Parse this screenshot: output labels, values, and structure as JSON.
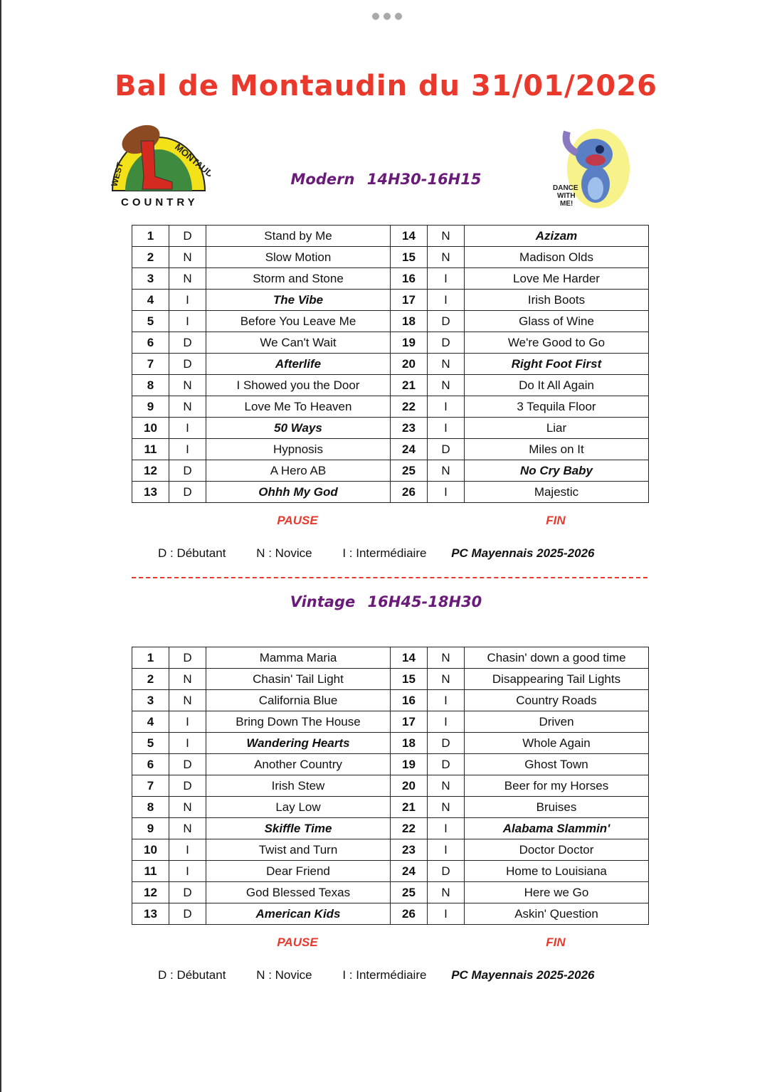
{
  "title": "Bal de Montaudin du 31/01/2026",
  "logos": {
    "left": "WEST MONTAUDIN COUNTRY",
    "right": "DANCE WITH ME!"
  },
  "sessions": [
    {
      "heading": "Modern   14H30-16H15",
      "pause_label": "PAUSE",
      "end_label": "FIN",
      "rows": [
        [
          {
            "num": "1",
            "level": "D",
            "title": "Stand by Me"
          },
          {
            "num": "14",
            "level": "N",
            "title": "Azizam",
            "emph": true
          }
        ],
        [
          {
            "num": "2",
            "level": "N",
            "title": "Slow Motion"
          },
          {
            "num": "15",
            "level": "N",
            "title": "Madison Olds"
          }
        ],
        [
          {
            "num": "3",
            "level": "N",
            "title": "Storm and Stone"
          },
          {
            "num": "16",
            "level": "I",
            "title": "Love Me Harder"
          }
        ],
        [
          {
            "num": "4",
            "level": "I",
            "title": "The Vibe",
            "emph": true
          },
          {
            "num": "17",
            "level": "I",
            "title": "Irish Boots"
          }
        ],
        [
          {
            "num": "5",
            "level": "I",
            "title": "Before You Leave Me"
          },
          {
            "num": "18",
            "level": "D",
            "title": "Glass of Wine"
          }
        ],
        [
          {
            "num": "6",
            "level": "D",
            "title": "We Can't Wait"
          },
          {
            "num": "19",
            "level": "D",
            "title": "We're Good to Go"
          }
        ],
        [
          {
            "num": "7",
            "level": "D",
            "title": "Afterlife",
            "emph": true
          },
          {
            "num": "20",
            "level": "N",
            "title": "Right Foot First",
            "emph": true
          }
        ],
        [
          {
            "num": "8",
            "level": "N",
            "title": "I Showed you the Door"
          },
          {
            "num": "21",
            "level": "N",
            "title": "Do It All Again"
          }
        ],
        [
          {
            "num": "9",
            "level": "N",
            "title": "Love Me To Heaven"
          },
          {
            "num": "22",
            "level": "I",
            "title": "3 Tequila Floor"
          }
        ],
        [
          {
            "num": "10",
            "level": "I",
            "title": "50 Ways",
            "emph": true
          },
          {
            "num": "23",
            "level": "I",
            "title": "Liar"
          }
        ],
        [
          {
            "num": "11",
            "level": "I",
            "title": "Hypnosis"
          },
          {
            "num": "24",
            "level": "D",
            "title": "Miles on It"
          }
        ],
        [
          {
            "num": "12",
            "level": "D",
            "title": "A Hero AB"
          },
          {
            "num": "25",
            "level": "N",
            "title": "No Cry Baby",
            "emph": true
          }
        ],
        [
          {
            "num": "13",
            "level": "D",
            "title": "Ohhh My God",
            "emph": true
          },
          {
            "num": "26",
            "level": "I",
            "title": "Majestic"
          }
        ]
      ]
    },
    {
      "heading": "Vintage   16H45-18H30",
      "pause_label": "PAUSE",
      "end_label": "FIN",
      "rows": [
        [
          {
            "num": "1",
            "level": "D",
            "title": "Mamma Maria"
          },
          {
            "num": "14",
            "level": "N",
            "title": "Chasin' down a good time"
          }
        ],
        [
          {
            "num": "2",
            "level": "N",
            "title": "Chasin' Tail Light"
          },
          {
            "num": "15",
            "level": "N",
            "title": "Disappearing Tail Lights"
          }
        ],
        [
          {
            "num": "3",
            "level": "N",
            "title": "California Blue"
          },
          {
            "num": "16",
            "level": "I",
            "title": "Country Roads"
          }
        ],
        [
          {
            "num": "4",
            "level": "I",
            "title": "Bring Down The House"
          },
          {
            "num": "17",
            "level": "I",
            "title": "Driven"
          }
        ],
        [
          {
            "num": "5",
            "level": "I",
            "title": "Wandering Hearts",
            "emph": true
          },
          {
            "num": "18",
            "level": "D",
            "title": "Whole Again"
          }
        ],
        [
          {
            "num": "6",
            "level": "D",
            "title": "Another Country"
          },
          {
            "num": "19",
            "level": "D",
            "title": "Ghost Town"
          }
        ],
        [
          {
            "num": "7",
            "level": "D",
            "title": "Irish Stew"
          },
          {
            "num": "20",
            "level": "N",
            "title": "Beer for my Horses"
          }
        ],
        [
          {
            "num": "8",
            "level": "N",
            "title": "Lay Low"
          },
          {
            "num": "21",
            "level": "N",
            "title": "Bruises"
          }
        ],
        [
          {
            "num": "9",
            "level": "N",
            "title": "Skiffle Time",
            "emph": true
          },
          {
            "num": "22",
            "level": "I",
            "title": "Alabama Slammin'",
            "emph": true
          }
        ],
        [
          {
            "num": "10",
            "level": "I",
            "title": "Twist and Turn"
          },
          {
            "num": "23",
            "level": "I",
            "title": "Doctor Doctor"
          }
        ],
        [
          {
            "num": "11",
            "level": "I",
            "title": "Dear Friend"
          },
          {
            "num": "24",
            "level": "D",
            "title": "Home to Louisiana"
          }
        ],
        [
          {
            "num": "12",
            "level": "D",
            "title": "God Blessed Texas"
          },
          {
            "num": "25",
            "level": "N",
            "title": "Here we Go"
          }
        ],
        [
          {
            "num": "13",
            "level": "D",
            "title": "American Kids",
            "emph": true
          },
          {
            "num": "26",
            "level": "I",
            "title": "Askin' Question"
          }
        ]
      ]
    }
  ],
  "legend": {
    "d": "D : Débutant",
    "n": "N : Novice",
    "i": "I : Intermédiaire",
    "credit": "PC Mayennais 2025-2026"
  },
  "colors": {
    "title": "#e8392c",
    "heading": "#6a1b7a"
  }
}
